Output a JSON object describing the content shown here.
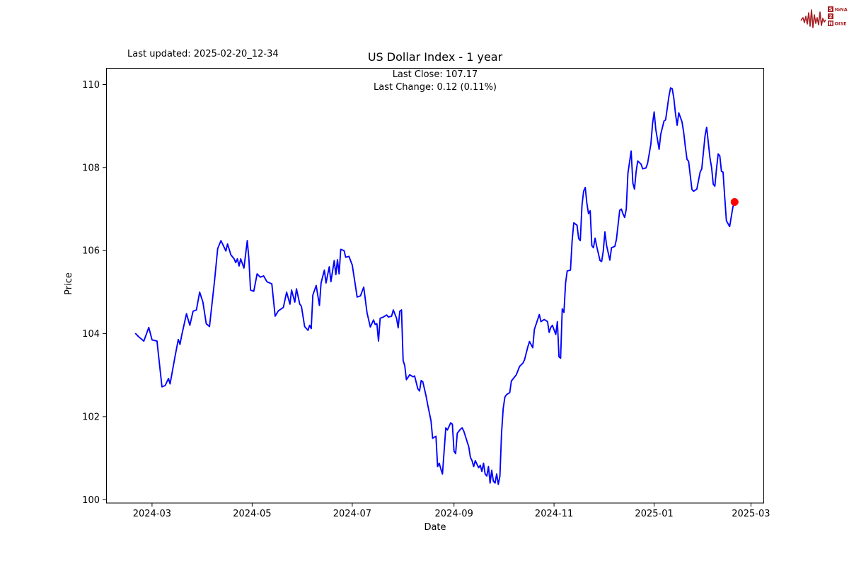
{
  "header": {
    "last_updated": "Last updated: 2025-02-20_12-34"
  },
  "logo": {
    "row1_first": "S",
    "row1_rest": "IGNAL",
    "row2": "2",
    "row3_first": "N",
    "row3_rest": "OISE",
    "color": "#a61e22"
  },
  "chart_data": {
    "type": "line",
    "title": "US Dollar Index - 1 year",
    "subtitle_line1": "Last Close: 107.17",
    "subtitle_line2": "Last Change: 0.12 (0.11%)",
    "xlabel": "Date",
    "ylabel": "Price",
    "line_color": "#0000ff",
    "marker_color": "#ff0000",
    "grid": false,
    "legend": "none",
    "ylim": [
      99.92,
      110.4
    ],
    "xlim": [
      "2024-02-02",
      "2025-03-09"
    ],
    "y_ticks": [
      100,
      102,
      104,
      106,
      108,
      110
    ],
    "x_ticks": [
      {
        "date": "2024-03-01",
        "label": "2024-03"
      },
      {
        "date": "2024-05-01",
        "label": "2024-05"
      },
      {
        "date": "2024-07-01",
        "label": "2024-07"
      },
      {
        "date": "2024-09-01",
        "label": "2024-09"
      },
      {
        "date": "2024-11-01",
        "label": "2024-11"
      },
      {
        "date": "2025-01-01",
        "label": "2025-01"
      },
      {
        "date": "2025-03-01",
        "label": "2025-03"
      }
    ],
    "series": [
      {
        "name": "US Dollar Index",
        "last_close": 107.17,
        "last_change": 0.12,
        "last_change_pct": 0.11,
        "points": [
          [
            "2024-02-20",
            104.0
          ],
          [
            "2024-02-22",
            103.92
          ],
          [
            "2024-02-25",
            103.82
          ],
          [
            "2024-02-28",
            104.15
          ],
          [
            "2024-03-01",
            103.85
          ],
          [
            "2024-03-04",
            103.82
          ],
          [
            "2024-03-07",
            102.72
          ],
          [
            "2024-03-09",
            102.75
          ],
          [
            "2024-03-11",
            102.92
          ],
          [
            "2024-03-12",
            102.79
          ],
          [
            "2024-03-15",
            103.45
          ],
          [
            "2024-03-17",
            103.86
          ],
          [
            "2024-03-18",
            103.74
          ],
          [
            "2024-03-19",
            103.95
          ],
          [
            "2024-03-22",
            104.48
          ],
          [
            "2024-03-24",
            104.2
          ],
          [
            "2024-03-26",
            104.54
          ],
          [
            "2024-03-28",
            104.57
          ],
          [
            "2024-03-30",
            105.0
          ],
          [
            "2024-04-01",
            104.76
          ],
          [
            "2024-04-03",
            104.24
          ],
          [
            "2024-04-05",
            104.17
          ],
          [
            "2024-04-08",
            105.25
          ],
          [
            "2024-04-10",
            106.05
          ],
          [
            "2024-04-12",
            106.24
          ],
          [
            "2024-04-15",
            105.99
          ],
          [
            "2024-04-16",
            106.16
          ],
          [
            "2024-04-18",
            105.9
          ],
          [
            "2024-04-20",
            105.8
          ],
          [
            "2024-04-21",
            105.71
          ],
          [
            "2024-04-22",
            105.8
          ],
          [
            "2024-04-23",
            105.63
          ],
          [
            "2024-04-24",
            105.8
          ],
          [
            "2024-04-26",
            105.58
          ],
          [
            "2024-04-28",
            106.24
          ],
          [
            "2024-04-29",
            105.8
          ],
          [
            "2024-04-30",
            105.05
          ],
          [
            "2024-05-02",
            105.02
          ],
          [
            "2024-05-04",
            105.44
          ],
          [
            "2024-05-06",
            105.36
          ],
          [
            "2024-05-08",
            105.39
          ],
          [
            "2024-05-10",
            105.25
          ],
          [
            "2024-05-13",
            105.2
          ],
          [
            "2024-05-15",
            104.42
          ],
          [
            "2024-05-17",
            104.55
          ],
          [
            "2024-05-20",
            104.63
          ],
          [
            "2024-05-22",
            105.0
          ],
          [
            "2024-05-24",
            104.71
          ],
          [
            "2024-05-25",
            105.05
          ],
          [
            "2024-05-27",
            104.76
          ],
          [
            "2024-05-28",
            105.08
          ],
          [
            "2024-05-30",
            104.71
          ],
          [
            "2024-05-31",
            104.66
          ],
          [
            "2024-06-02",
            104.17
          ],
          [
            "2024-06-04",
            104.08
          ],
          [
            "2024-06-05",
            104.2
          ],
          [
            "2024-06-06",
            104.12
          ],
          [
            "2024-06-07",
            104.93
          ],
          [
            "2024-06-09",
            105.16
          ],
          [
            "2024-06-11",
            104.68
          ],
          [
            "2024-06-12",
            105.22
          ],
          [
            "2024-06-14",
            105.53
          ],
          [
            "2024-06-15",
            105.22
          ],
          [
            "2024-06-17",
            105.61
          ],
          [
            "2024-06-18",
            105.25
          ],
          [
            "2024-06-20",
            105.76
          ],
          [
            "2024-06-21",
            105.42
          ],
          [
            "2024-06-22",
            105.78
          ],
          [
            "2024-06-23",
            105.44
          ],
          [
            "2024-06-24",
            106.03
          ],
          [
            "2024-06-26",
            106.0
          ],
          [
            "2024-06-27",
            105.84
          ],
          [
            "2024-06-29",
            105.86
          ],
          [
            "2024-07-01",
            105.65
          ],
          [
            "2024-07-03",
            105.14
          ],
          [
            "2024-07-04",
            104.88
          ],
          [
            "2024-07-06",
            104.91
          ],
          [
            "2024-07-08",
            105.12
          ],
          [
            "2024-07-10",
            104.5
          ],
          [
            "2024-07-12",
            104.16
          ],
          [
            "2024-07-14",
            104.33
          ],
          [
            "2024-07-15",
            104.22
          ],
          [
            "2024-07-16",
            104.24
          ],
          [
            "2024-07-17",
            103.82
          ],
          [
            "2024-07-18",
            104.37
          ],
          [
            "2024-07-20",
            104.4
          ],
          [
            "2024-07-22",
            104.45
          ],
          [
            "2024-07-23",
            104.4
          ],
          [
            "2024-07-25",
            104.42
          ],
          [
            "2024-07-26",
            104.57
          ],
          [
            "2024-07-28",
            104.37
          ],
          [
            "2024-07-29",
            104.14
          ],
          [
            "2024-07-30",
            104.54
          ],
          [
            "2024-07-31",
            104.57
          ],
          [
            "2024-08-01",
            103.35
          ],
          [
            "2024-08-02",
            103.23
          ],
          [
            "2024-08-03",
            102.89
          ],
          [
            "2024-08-05",
            103.01
          ],
          [
            "2024-08-07",
            102.96
          ],
          [
            "2024-08-08",
            102.98
          ],
          [
            "2024-08-10",
            102.67
          ],
          [
            "2024-08-11",
            102.62
          ],
          [
            "2024-08-12",
            102.87
          ],
          [
            "2024-08-13",
            102.84
          ],
          [
            "2024-08-15",
            102.5
          ],
          [
            "2024-08-16",
            102.28
          ],
          [
            "2024-08-18",
            101.9
          ],
          [
            "2024-08-19",
            101.48
          ],
          [
            "2024-08-21",
            101.53
          ],
          [
            "2024-08-22",
            100.8
          ],
          [
            "2024-08-23",
            100.88
          ],
          [
            "2024-08-24",
            100.74
          ],
          [
            "2024-08-25",
            100.62
          ],
          [
            "2024-08-27",
            101.73
          ],
          [
            "2024-08-28",
            101.68
          ],
          [
            "2024-08-30",
            101.85
          ],
          [
            "2024-08-31",
            101.82
          ],
          [
            "2024-09-01",
            101.17
          ],
          [
            "2024-09-02",
            101.11
          ],
          [
            "2024-09-03",
            101.6
          ],
          [
            "2024-09-05",
            101.7
          ],
          [
            "2024-09-06",
            101.73
          ],
          [
            "2024-09-07",
            101.65
          ],
          [
            "2024-09-09",
            101.4
          ],
          [
            "2024-09-10",
            101.28
          ],
          [
            "2024-09-11",
            101.02
          ],
          [
            "2024-09-12",
            100.94
          ],
          [
            "2024-09-13",
            100.8
          ],
          [
            "2024-09-14",
            100.94
          ],
          [
            "2024-09-16",
            100.77
          ],
          [
            "2024-09-17",
            100.83
          ],
          [
            "2024-09-18",
            100.68
          ],
          [
            "2024-09-19",
            100.88
          ],
          [
            "2024-09-20",
            100.62
          ],
          [
            "2024-09-21",
            100.57
          ],
          [
            "2024-09-22",
            100.8
          ],
          [
            "2024-09-23",
            100.4
          ],
          [
            "2024-09-24",
            100.71
          ],
          [
            "2024-09-25",
            100.45
          ],
          [
            "2024-09-26",
            100.4
          ],
          [
            "2024-09-27",
            100.62
          ],
          [
            "2024-09-28",
            100.37
          ],
          [
            "2024-09-29",
            100.57
          ],
          [
            "2024-09-30",
            101.6
          ],
          [
            "2024-10-01",
            102.19
          ],
          [
            "2024-10-02",
            102.47
          ],
          [
            "2024-10-03",
            102.53
          ],
          [
            "2024-10-05",
            102.58
          ],
          [
            "2024-10-06",
            102.86
          ],
          [
            "2024-10-09",
            103.01
          ],
          [
            "2024-10-11",
            103.21
          ],
          [
            "2024-10-13",
            103.29
          ],
          [
            "2024-10-14",
            103.37
          ],
          [
            "2024-10-16",
            103.68
          ],
          [
            "2024-10-17",
            103.81
          ],
          [
            "2024-10-19",
            103.66
          ],
          [
            "2024-10-20",
            104.1
          ],
          [
            "2024-10-23",
            104.46
          ],
          [
            "2024-10-24",
            104.29
          ],
          [
            "2024-10-26",
            104.34
          ],
          [
            "2024-10-28",
            104.29
          ],
          [
            "2024-10-29",
            104.03
          ],
          [
            "2024-10-30",
            104.15
          ],
          [
            "2024-10-31",
            104.2
          ],
          [
            "2024-11-02",
            103.98
          ],
          [
            "2024-11-03",
            104.29
          ],
          [
            "2024-11-04",
            103.44
          ],
          [
            "2024-11-05",
            103.41
          ],
          [
            "2024-11-06",
            104.6
          ],
          [
            "2024-11-07",
            104.51
          ],
          [
            "2024-11-08",
            105.22
          ],
          [
            "2024-11-09",
            105.51
          ],
          [
            "2024-11-11",
            105.53
          ],
          [
            "2024-11-12",
            106.24
          ],
          [
            "2024-11-13",
            106.67
          ],
          [
            "2024-11-15",
            106.61
          ],
          [
            "2024-11-16",
            106.29
          ],
          [
            "2024-11-17",
            106.24
          ],
          [
            "2024-11-18",
            107.09
          ],
          [
            "2024-11-19",
            107.43
          ],
          [
            "2024-11-20",
            107.52
          ],
          [
            "2024-11-21",
            107.14
          ],
          [
            "2024-11-22",
            106.89
          ],
          [
            "2024-11-23",
            106.96
          ],
          [
            "2024-11-24",
            106.12
          ],
          [
            "2024-11-25",
            106.07
          ],
          [
            "2024-11-26",
            106.3
          ],
          [
            "2024-11-27",
            106.1
          ],
          [
            "2024-11-29",
            105.76
          ],
          [
            "2024-11-30",
            105.74
          ],
          [
            "2024-12-01",
            105.99
          ],
          [
            "2024-12-02",
            106.45
          ],
          [
            "2024-12-03",
            106.12
          ],
          [
            "2024-12-05",
            105.77
          ],
          [
            "2024-12-06",
            106.07
          ],
          [
            "2024-12-08",
            106.1
          ],
          [
            "2024-12-09",
            106.27
          ],
          [
            "2024-12-11",
            106.97
          ],
          [
            "2024-12-12",
            107.0
          ],
          [
            "2024-12-13",
            106.89
          ],
          [
            "2024-12-14",
            106.8
          ],
          [
            "2024-12-15",
            107.0
          ],
          [
            "2024-12-16",
            107.86
          ],
          [
            "2024-12-18",
            108.4
          ],
          [
            "2024-12-19",
            107.63
          ],
          [
            "2024-12-20",
            107.48
          ],
          [
            "2024-12-21",
            107.9
          ],
          [
            "2024-12-22",
            108.16
          ],
          [
            "2024-12-24",
            108.08
          ],
          [
            "2024-12-25",
            107.97
          ],
          [
            "2024-12-27",
            107.99
          ],
          [
            "2024-12-28",
            108.1
          ],
          [
            "2024-12-30",
            108.57
          ],
          [
            "2024-12-31",
            109.05
          ],
          [
            "2025-01-01",
            109.34
          ],
          [
            "2025-01-02",
            108.92
          ],
          [
            "2025-01-04",
            108.44
          ],
          [
            "2025-01-05",
            108.8
          ],
          [
            "2025-01-07",
            109.12
          ],
          [
            "2025-01-08",
            109.15
          ],
          [
            "2025-01-10",
            109.72
          ],
          [
            "2025-01-11",
            109.92
          ],
          [
            "2025-01-12",
            109.9
          ],
          [
            "2025-01-13",
            109.67
          ],
          [
            "2025-01-14",
            109.29
          ],
          [
            "2025-01-15",
            109.02
          ],
          [
            "2025-01-16",
            109.32
          ],
          [
            "2025-01-18",
            109.1
          ],
          [
            "2025-01-19",
            108.84
          ],
          [
            "2025-01-20",
            108.5
          ],
          [
            "2025-01-21",
            108.2
          ],
          [
            "2025-01-22",
            108.15
          ],
          [
            "2025-01-24",
            107.47
          ],
          [
            "2025-01-25",
            107.43
          ],
          [
            "2025-01-27",
            107.48
          ],
          [
            "2025-01-29",
            107.89
          ],
          [
            "2025-01-30",
            107.97
          ],
          [
            "2025-02-01",
            108.76
          ],
          [
            "2025-02-02",
            108.97
          ],
          [
            "2025-02-04",
            108.23
          ],
          [
            "2025-02-05",
            108.0
          ],
          [
            "2025-02-06",
            107.6
          ],
          [
            "2025-02-07",
            107.55
          ],
          [
            "2025-02-08",
            107.97
          ],
          [
            "2025-02-09",
            108.33
          ],
          [
            "2025-02-10",
            108.28
          ],
          [
            "2025-02-11",
            107.91
          ],
          [
            "2025-02-12",
            107.89
          ],
          [
            "2025-02-13",
            107.3
          ],
          [
            "2025-02-14",
            106.72
          ],
          [
            "2025-02-15",
            106.65
          ],
          [
            "2025-02-16",
            106.58
          ],
          [
            "2025-02-18",
            107.05
          ],
          [
            "2025-02-19",
            107.17
          ]
        ]
      }
    ]
  }
}
